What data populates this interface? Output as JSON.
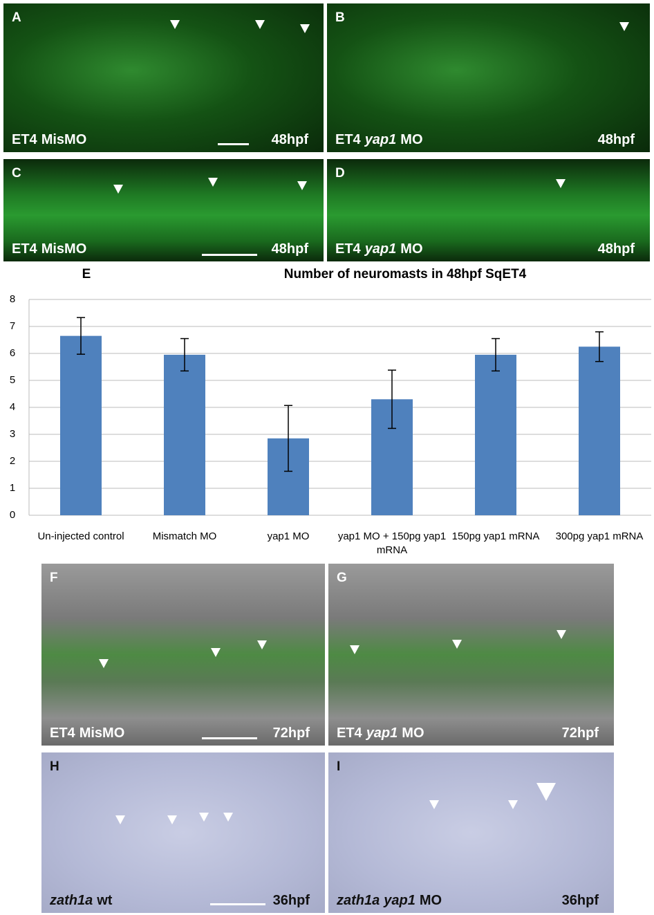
{
  "panels": [
    {
      "label": "A",
      "caption": [
        "ET4",
        "MisMO"
      ],
      "stage": "48hpf"
    },
    {
      "label": "B",
      "caption": [
        "ET4",
        "yap1",
        "MO"
      ],
      "stage": "48hpf"
    },
    {
      "label": "C",
      "caption": [
        "ET4",
        "MisMO"
      ],
      "stage": "48hpf"
    },
    {
      "label": "D",
      "caption": [
        "ET4",
        "yap1",
        "MO"
      ],
      "stage": "48hpf"
    },
    {
      "label": "F",
      "caption": [
        "ET4",
        "MisMO"
      ],
      "stage": "72hpf"
    },
    {
      "label": "G",
      "caption": [
        "ET4",
        "yap1",
        "MO"
      ],
      "stage": "72hpf"
    },
    {
      "label": "H",
      "caption": [
        "zath1a",
        "wt"
      ],
      "stage": "36hpf"
    },
    {
      "label": "I",
      "caption": [
        "zath1a",
        "yap1",
        "MO"
      ],
      "stage": "36hpf"
    }
  ],
  "chart_data": {
    "type": "bar",
    "label": "E",
    "title": "Number of neuromasts in 48hpf SqET4",
    "categories": [
      "Un-injected control",
      "Mismatch MO",
      "yap1 MO",
      "yap1 MO + 150pg yap1 mRNA",
      "150pg yap1 mRNA",
      "300pg yap1 mRNA"
    ],
    "values": [
      6.65,
      5.95,
      2.85,
      4.3,
      5.95,
      6.25
    ],
    "errors": [
      0.68,
      0.6,
      1.22,
      1.08,
      0.6,
      0.55
    ],
    "color": "#4f81bd",
    "ylim": [
      0,
      8
    ],
    "yticks": [
      0,
      1,
      2,
      3,
      4,
      5,
      6,
      7,
      8
    ],
    "grid": true
  }
}
